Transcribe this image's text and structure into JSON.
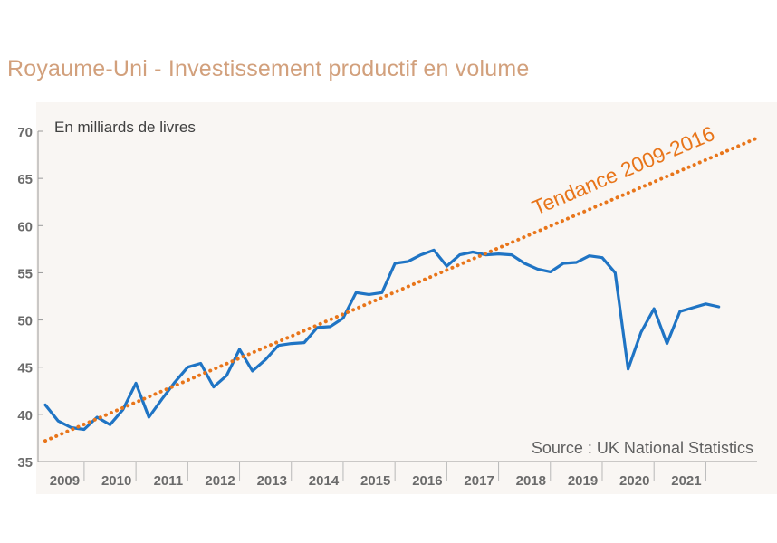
{
  "chart_data": {
    "type": "line",
    "title": "Royaume-Uni - Investissement productif en volume",
    "ylabel": "En milliards de livres",
    "source": "Source : UK National Statistics",
    "ylim": [
      35,
      70
    ],
    "yticks": [
      35,
      40,
      45,
      50,
      55,
      60,
      65,
      70
    ],
    "xlabels": [
      "2009",
      "2010",
      "2011",
      "2012",
      "2013",
      "2014",
      "2015",
      "2016",
      "2017",
      "2018",
      "2019",
      "2020",
      "2021"
    ],
    "x_start": 2009.0,
    "x_end": 2022.25,
    "series": [
      {
        "name": "Investissement productif",
        "color": "#1f74c4",
        "x": [
          2009.0,
          2009.25,
          2009.5,
          2009.75,
          2010.0,
          2010.25,
          2010.5,
          2010.75,
          2011.0,
          2011.25,
          2011.5,
          2011.75,
          2012.0,
          2012.25,
          2012.5,
          2012.75,
          2013.0,
          2013.25,
          2013.5,
          2013.75,
          2014.0,
          2014.25,
          2014.5,
          2014.75,
          2015.0,
          2015.25,
          2015.5,
          2015.75,
          2016.0,
          2016.25,
          2016.5,
          2016.75,
          2017.0,
          2017.25,
          2017.5,
          2017.75,
          2018.0,
          2018.25,
          2018.5,
          2018.75,
          2019.0,
          2019.25,
          2019.5,
          2019.75,
          2020.0,
          2020.25,
          2020.5,
          2020.75,
          2021.0,
          2021.25,
          2021.5,
          2021.75,
          2022.0
        ],
        "values": [
          41.0,
          39.3,
          38.6,
          38.4,
          39.7,
          38.9,
          40.5,
          43.3,
          39.7,
          41.6,
          43.4,
          45.0,
          45.4,
          42.9,
          44.1,
          46.9,
          44.6,
          45.8,
          47.3,
          47.5,
          47.6,
          49.2,
          49.3,
          50.2,
          52.9,
          52.7,
          52.9,
          56.0,
          56.2,
          56.9,
          57.4,
          55.7,
          56.9,
          57.2,
          56.9,
          57.0,
          56.9,
          56.0,
          55.4,
          55.1,
          56.0,
          56.1,
          56.8,
          56.6,
          55.0,
          44.8,
          48.7,
          51.2,
          47.5,
          50.9,
          51.3,
          51.7,
          51.4
        ]
      },
      {
        "name": "Tendance 2009-2016",
        "color": "#e8751a",
        "style": "dotted",
        "x": [
          2009.0,
          2022.75
        ],
        "values": [
          37.2,
          69.3
        ]
      }
    ],
    "trend_label": "Tendance 2009-2016"
  },
  "colors": {
    "background": "#ffffff",
    "plot_area": "#f9f6f3",
    "title": "#d2a07c",
    "line": "#1f74c4",
    "trend": "#e8751a"
  }
}
